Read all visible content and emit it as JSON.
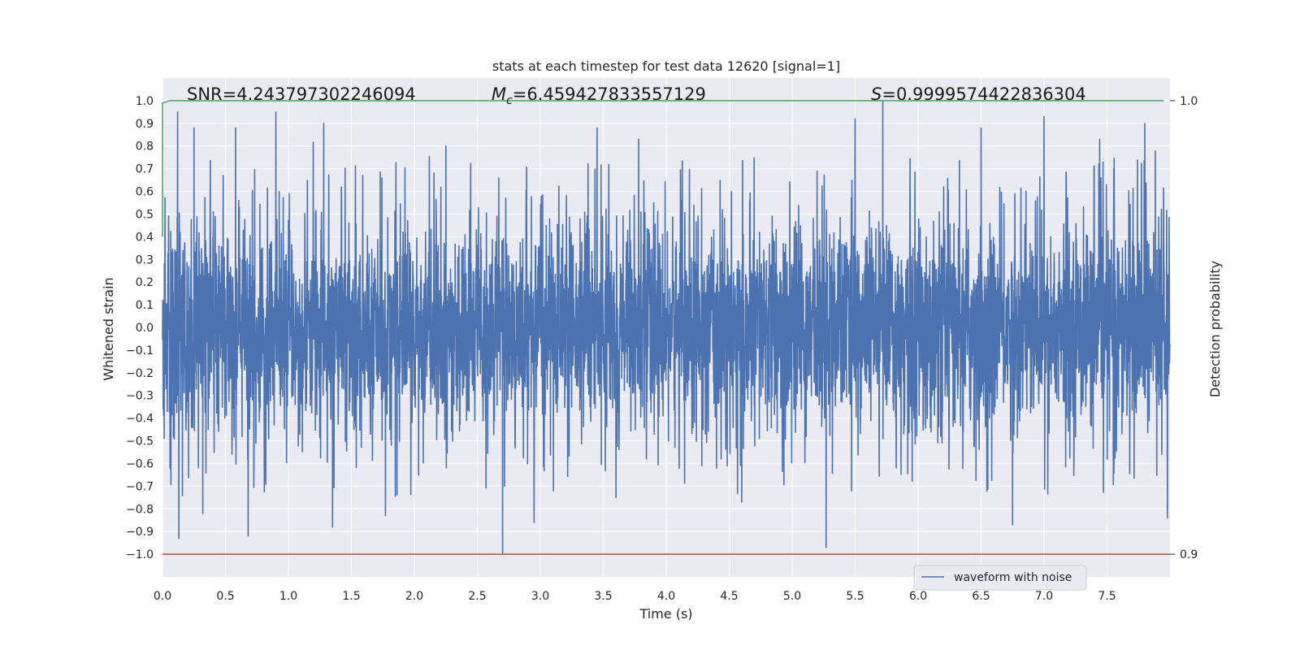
{
  "chart_data": {
    "type": "line",
    "title": "stats at each timestep for test data 12620 [signal=1]",
    "xlabel": "Time (s)",
    "ylabel": "Whitened strain",
    "y2label": "Detection probability",
    "xlim": [
      0.0,
      8.0
    ],
    "ylim": [
      -1.1,
      1.1
    ],
    "y2lim": [
      0.895,
      1.005
    ],
    "xticks": [
      "0.0",
      "0.5",
      "1.0",
      "1.5",
      "2.0",
      "2.5",
      "3.0",
      "3.5",
      "4.0",
      "4.5",
      "5.0",
      "5.5",
      "6.0",
      "6.5",
      "7.0",
      "7.5"
    ],
    "yticks": [
      "1.0",
      "0.9",
      "0.8",
      "0.7",
      "0.6",
      "0.5",
      "0.4",
      "0.3",
      "0.2",
      "0.1",
      "0.0",
      "−0.1",
      "−0.2",
      "−0.3",
      "−0.4",
      "−0.5",
      "−0.6",
      "−0.7",
      "−0.8",
      "−0.9",
      "−1.0"
    ],
    "y2ticks": [
      "1.0",
      "0.9"
    ],
    "grid": true,
    "legend_position": "lower-center-right",
    "annotations": {
      "snr": "SNR=4.243797302246094",
      "mc_symbol": "M",
      "mc_sub": "c",
      "mc_value": "=6.459427833557129",
      "s_symbol": "S",
      "s_value": "=0.9999574422836304"
    },
    "series": [
      {
        "name": "waveform with noise",
        "axis": "left",
        "color": "#4c72b0",
        "description_of_data": "noise-like whitened strain, 8 s duration",
        "x_range": [
          0.0,
          8.0
        ],
        "amplitude_core": 0.35,
        "peak_max": 1.0,
        "peak_min": -1.0,
        "peaks": [
          [
            0.12,
            0.95
          ],
          [
            0.25,
            0.88
          ],
          [
            0.58,
            0.88
          ],
          [
            0.9,
            0.95
          ],
          [
            1.28,
            0.9
          ],
          [
            2.25,
            0.8
          ],
          [
            3.45,
            0.88
          ],
          [
            3.78,
            0.83
          ],
          [
            5.5,
            0.92
          ],
          [
            5.72,
            1.0
          ],
          [
            6.5,
            0.88
          ],
          [
            7.0,
            0.93
          ],
          [
            7.8,
            0.9
          ],
          [
            0.13,
            -0.93
          ],
          [
            0.32,
            -0.82
          ],
          [
            0.68,
            -0.92
          ],
          [
            1.35,
            -0.88
          ],
          [
            1.77,
            -0.83
          ],
          [
            2.7,
            -1.0
          ],
          [
            2.95,
            -0.86
          ],
          [
            3.6,
            -0.75
          ],
          [
            4.6,
            -0.77
          ],
          [
            5.27,
            -0.97
          ],
          [
            6.75,
            -0.87
          ],
          [
            7.98,
            -0.84
          ]
        ]
      },
      {
        "name": "",
        "axis": "right",
        "color": "#55a868",
        "x": [
          0.0,
          0.06,
          7.95
        ],
        "y": [
          0.9995,
          1.0,
          1.0
        ],
        "y_start": 0.97
      },
      {
        "name": "",
        "axis": "right",
        "color": "#c44e52",
        "x": [
          0.0,
          8.0
        ],
        "y": [
          0.9,
          0.9
        ]
      }
    ]
  }
}
